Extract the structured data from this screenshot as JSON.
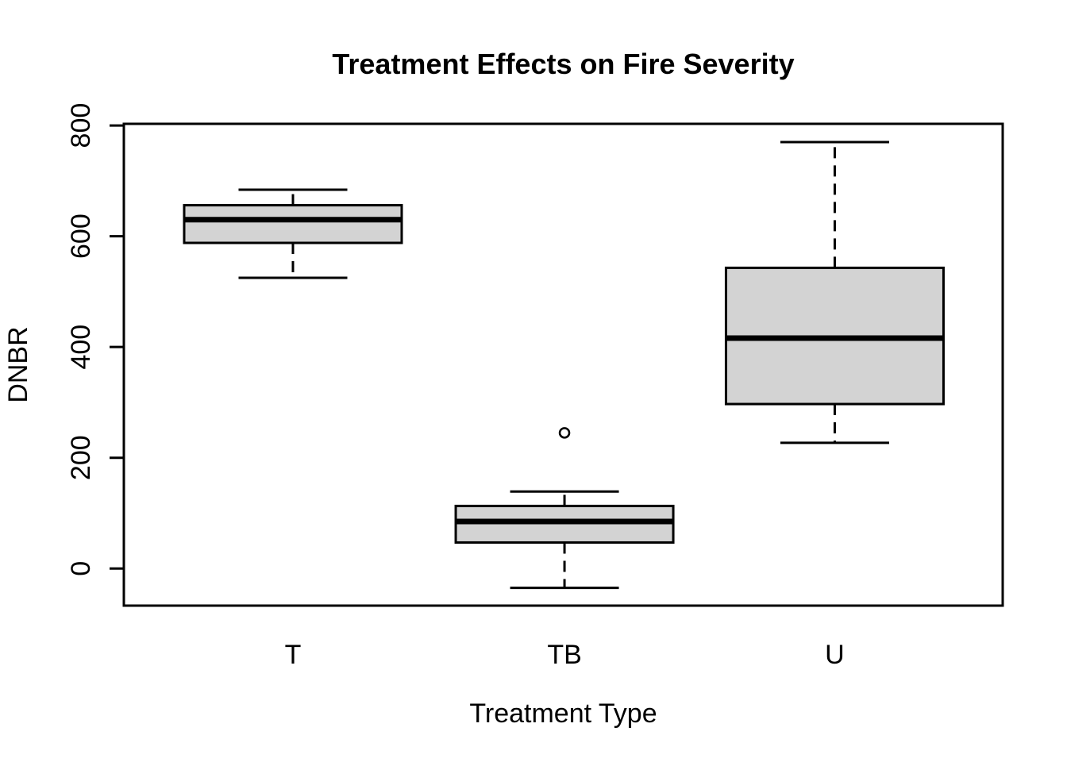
{
  "chart_data": {
    "type": "boxplot",
    "title": "Treatment Effects on Fire Severity",
    "xlabel": "Treatment Type",
    "ylabel": "DNBR",
    "categories": [
      "T",
      "TB",
      "U"
    ],
    "y_ticks": [
      0,
      200,
      400,
      600,
      800
    ],
    "ylim": [
      -67,
      803
    ],
    "grid": false,
    "legend": "none",
    "colors": {
      "box_fill": "#d3d3d3",
      "stroke": "#000000",
      "background": "#ffffff"
    },
    "series": [
      {
        "name": "T",
        "whisker_low": 525,
        "q1": 588,
        "median": 630,
        "q3": 656,
        "whisker_high": 684,
        "outliers": []
      },
      {
        "name": "TB",
        "whisker_low": -35,
        "q1": 47,
        "median": 85,
        "q3": 113,
        "whisker_high": 139,
        "outliers": [
          245
        ]
      },
      {
        "name": "U",
        "whisker_low": 227,
        "q1": 297,
        "median": 416,
        "q3": 543,
        "whisker_high": 770,
        "outliers": []
      }
    ]
  }
}
